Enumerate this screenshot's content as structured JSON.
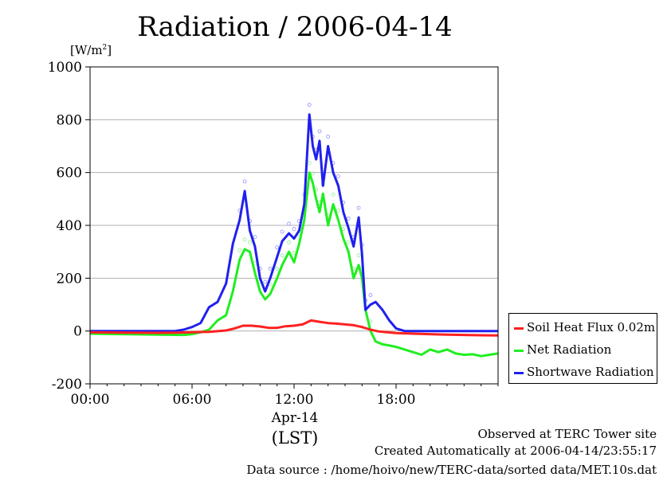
{
  "title": "Radiation / 2006-04-14",
  "unit_label_prefix": "[W/m",
  "unit_label_sup": "2",
  "unit_label_suffix": "]",
  "x_date_label": "Apr-14",
  "x_axis_label": "(LST)",
  "footer": {
    "observed": "Observed at TERC Tower site",
    "created": "Created Automatically at 2006-04-14/23:55:17",
    "source": "Data source : /home/hoivo/new/TERC-data/sorted data/MET.10s.dat"
  },
  "colors": {
    "soil": "#ff2020",
    "net": "#20ee20",
    "short": "#2020ee",
    "short_scatter": "#9090ff",
    "net_scatter": "#90ee90"
  },
  "chart_data": {
    "type": "line",
    "title": "Radiation / 2006-04-14",
    "ylabel": "[W/m2]",
    "xlabel": "(LST)",
    "xlim": [
      0,
      24
    ],
    "ylim": [
      -200,
      1000
    ],
    "yticks": [
      -200,
      0,
      200,
      400,
      600,
      800,
      1000
    ],
    "ytick_labels": [
      "-200",
      "0",
      "200",
      "400",
      "600",
      "800",
      "1000"
    ],
    "xticks": [
      0,
      6,
      12,
      18
    ],
    "xtick_labels": [
      "00:00",
      "06:00",
      "12:00",
      "18:00"
    ],
    "grid": "horizontal",
    "legend_position": "right-outside-bottom",
    "series": [
      {
        "name": "Soil Heat Flux 0.02m",
        "color": "#ff2020",
        "x": [
          0,
          2,
          4,
          5,
          6,
          7,
          8,
          8.5,
          9,
          9.5,
          10,
          10.5,
          11,
          11.5,
          12,
          12.5,
          13,
          13.5,
          14,
          14.5,
          15,
          15.5,
          16,
          16.5,
          17,
          18,
          19,
          20,
          21,
          22,
          23,
          24
        ],
        "y": [
          -5,
          -6,
          -7,
          -6,
          -5,
          -3,
          2,
          10,
          20,
          20,
          17,
          12,
          12,
          18,
          20,
          25,
          40,
          35,
          30,
          28,
          25,
          22,
          15,
          5,
          -2,
          -8,
          -10,
          -12,
          -14,
          -15,
          -16,
          -17
        ]
      },
      {
        "name": "Net Radiation",
        "color": "#20ee20",
        "x": [
          0,
          2,
          4,
          5.5,
          6,
          6.5,
          7,
          7.5,
          8,
          8.4,
          8.8,
          9.1,
          9.4,
          9.7,
          10,
          10.3,
          10.6,
          11,
          11.3,
          11.7,
          12,
          12.3,
          12.6,
          12.9,
          13.1,
          13.3,
          13.5,
          13.7,
          14,
          14.3,
          14.6,
          14.9,
          15.2,
          15.5,
          15.8,
          16,
          16.2,
          16.5,
          16.8,
          17.2,
          17.6,
          18,
          18.5,
          19,
          19.5,
          20,
          20.5,
          21,
          21.5,
          22,
          22.5,
          23,
          23.5,
          24
        ],
        "y": [
          -10,
          -12,
          -14,
          -15,
          -12,
          -5,
          5,
          40,
          60,
          150,
          270,
          310,
          300,
          220,
          150,
          120,
          140,
          200,
          250,
          300,
          260,
          330,
          420,
          600,
          560,
          500,
          450,
          520,
          400,
          480,
          420,
          350,
          300,
          200,
          250,
          200,
          80,
          0,
          -40,
          -50,
          -55,
          -60,
          -70,
          -80,
          -90,
          -70,
          -80,
          -70,
          -85,
          -90,
          -88,
          -95,
          -90,
          -85
        ]
      },
      {
        "name": "Shortwave Radiation",
        "color": "#2020ee",
        "x": [
          0,
          2,
          4,
          5,
          5.5,
          6,
          6.5,
          7,
          7.5,
          8,
          8.4,
          8.8,
          9.1,
          9.4,
          9.7,
          10,
          10.3,
          10.6,
          11,
          11.3,
          11.7,
          12,
          12.3,
          12.6,
          12.9,
          13.1,
          13.3,
          13.5,
          13.7,
          14,
          14.3,
          14.6,
          14.9,
          15.2,
          15.5,
          15.8,
          16,
          16.2,
          16.5,
          16.8,
          17.2,
          17.6,
          18,
          18.5,
          20,
          22,
          24
        ],
        "y": [
          0,
          0,
          0,
          0,
          5,
          15,
          30,
          90,
          110,
          180,
          330,
          420,
          530,
          380,
          320,
          200,
          150,
          200,
          280,
          340,
          370,
          350,
          380,
          480,
          820,
          700,
          650,
          720,
          550,
          700,
          600,
          550,
          450,
          390,
          320,
          430,
          290,
          80,
          100,
          110,
          80,
          40,
          10,
          0,
          0,
          0,
          0
        ]
      }
    ]
  },
  "legend": [
    {
      "label": "Soil Heat Flux 0.02m",
      "color": "#ff2020"
    },
    {
      "label": "Net Radiation",
      "color": "#20ee20"
    },
    {
      "label": "Shortwave Radiation",
      "color": "#2020ee"
    }
  ]
}
